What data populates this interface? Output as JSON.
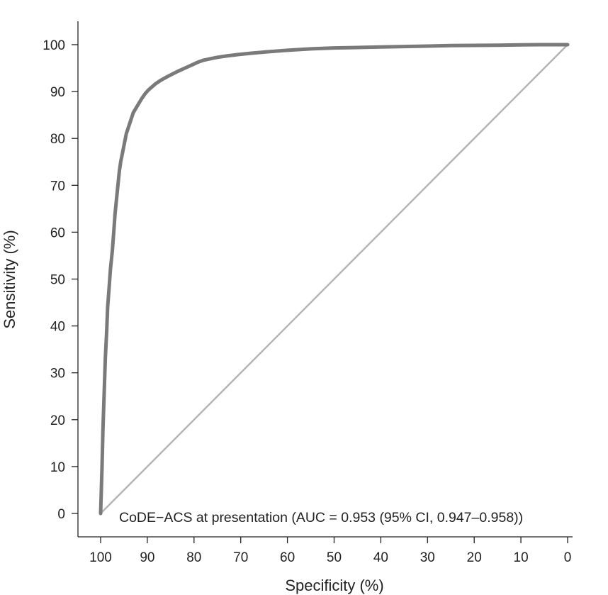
{
  "chart_data": {
    "type": "line",
    "xlabel": "Specificity (%)",
    "ylabel": "Sensitivity (%)",
    "xlim": [
      100,
      0
    ],
    "ylim": [
      0,
      100
    ],
    "x_ticks": [
      100,
      90,
      80,
      70,
      60,
      50,
      40,
      30,
      20,
      10,
      0
    ],
    "y_ticks": [
      0,
      10,
      20,
      30,
      40,
      50,
      60,
      70,
      80,
      90,
      100
    ],
    "x_reversed": true,
    "grid": false,
    "annotation": "CoDE−ACS at presentation (AUC = 0.953 (95% CI, 0.947–0.958))",
    "colors": {
      "roc": "#7a7a7a",
      "reference": "#b3b3b3",
      "axis": "#222222"
    },
    "series": [
      {
        "role": "roc",
        "x": [
          100,
          99.7,
          99.5,
          99.2,
          99,
          98.7,
          98.5,
          98.2,
          97.9,
          97.5,
          97.2,
          96.9,
          96.6,
          96.3,
          96,
          95.7,
          95.3,
          94.9,
          94.5,
          94,
          93.5,
          93,
          92.4,
          91.8,
          91.2,
          90.5,
          89.8,
          89,
          88.2,
          87.3,
          86.4,
          85.5,
          84.5,
          83.5,
          82.4,
          81.3,
          80.2,
          79.1,
          77.9,
          76.5,
          75,
          73,
          70.5,
          67.5,
          64,
          60,
          55,
          50,
          45,
          40,
          35,
          30,
          25,
          20,
          15,
          10,
          5,
          0
        ],
        "y": [
          0,
          10,
          18,
          27,
          33,
          39,
          44,
          48,
          52,
          56,
          60,
          64,
          67,
          70,
          73,
          75,
          77,
          79,
          81,
          82.5,
          84,
          85.5,
          86.5,
          87.5,
          88.5,
          89.5,
          90.3,
          91,
          91.7,
          92.3,
          92.8,
          93.3,
          93.8,
          94.3,
          94.8,
          95.3,
          95.8,
          96.3,
          96.7,
          97,
          97.3,
          97.6,
          97.9,
          98.2,
          98.5,
          98.8,
          99.1,
          99.3,
          99.4,
          99.5,
          99.6,
          99.7,
          99.8,
          99.85,
          99.9,
          99.95,
          100,
          100
        ]
      },
      {
        "role": "reference",
        "x": [
          100,
          0
        ],
        "y": [
          0,
          100
        ]
      }
    ]
  }
}
